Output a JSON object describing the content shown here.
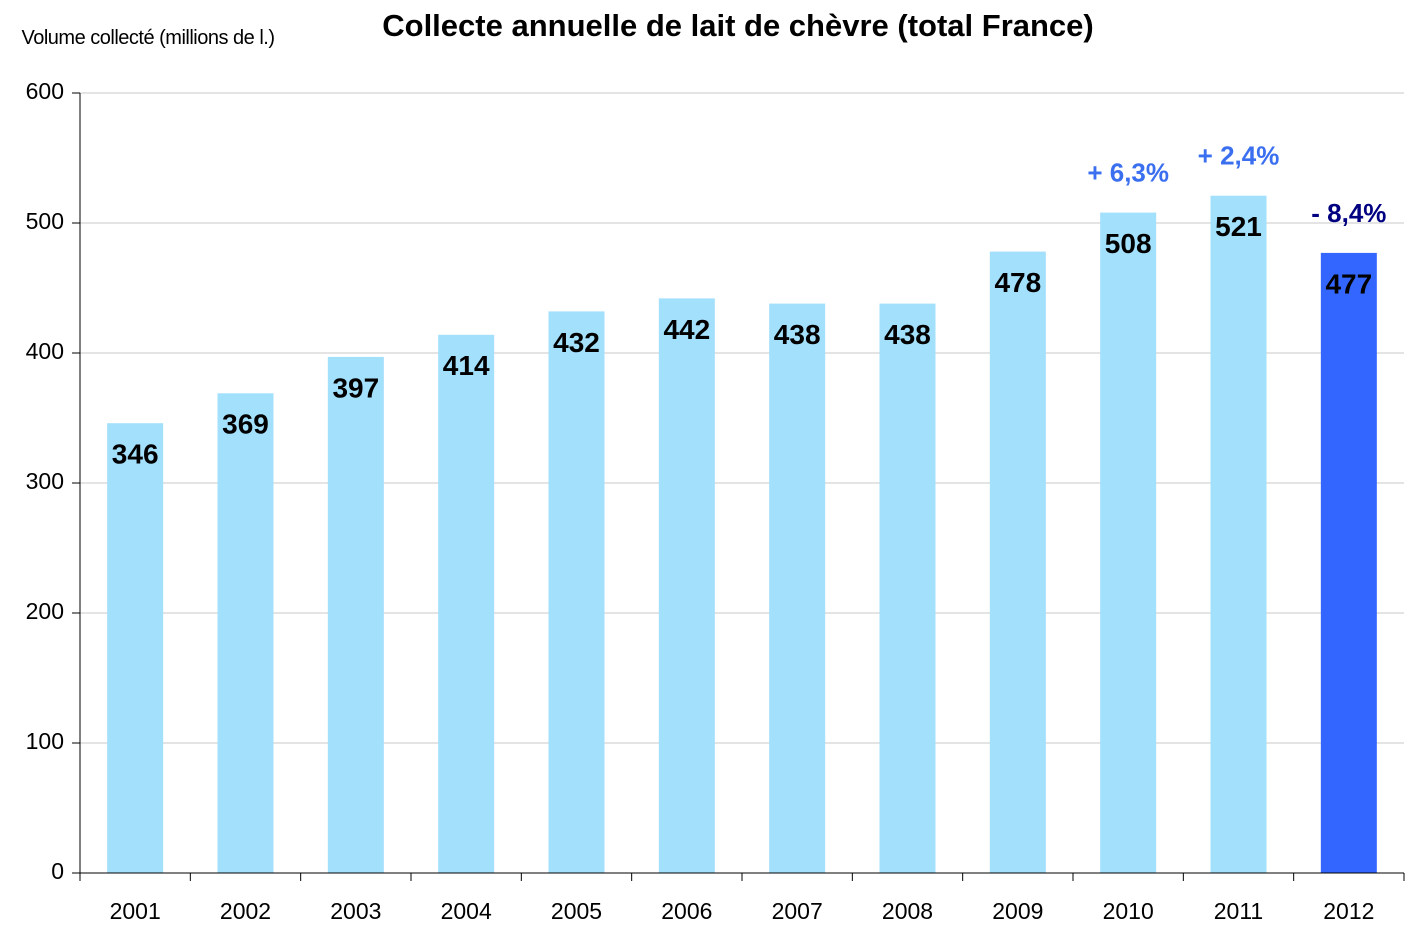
{
  "chart_data": {
    "type": "bar",
    "title": "Collecte annuelle de lait de chèvre (total France)",
    "y_label": "Volume collecté (millions de l.)",
    "categories": [
      "2001",
      "2002",
      "2003",
      "2004",
      "2005",
      "2006",
      "2007",
      "2008",
      "2009",
      "2010",
      "2011",
      "2012"
    ],
    "values": [
      346,
      369,
      397,
      414,
      432,
      442,
      438,
      438,
      478,
      508,
      521,
      477
    ],
    "colors": [
      "#a3e0fc",
      "#a3e0fc",
      "#a3e0fc",
      "#a3e0fc",
      "#a3e0fc",
      "#a3e0fc",
      "#a3e0fc",
      "#a3e0fc",
      "#a3e0fc",
      "#a3e0fc",
      "#a3e0fc",
      "#3366ff"
    ],
    "ylim": [
      0,
      600
    ],
    "yticks": [
      0,
      100,
      200,
      300,
      400,
      500,
      600
    ],
    "grid": true,
    "annotations": [
      {
        "text": "+ 6,3%",
        "category": "2010",
        "color": "#3a6ff0"
      },
      {
        "text": "+ 2,4%",
        "category": "2011",
        "color": "#3a6ff0"
      },
      {
        "text": "- 8,4%",
        "category": "2012",
        "color": "#000080"
      }
    ]
  }
}
